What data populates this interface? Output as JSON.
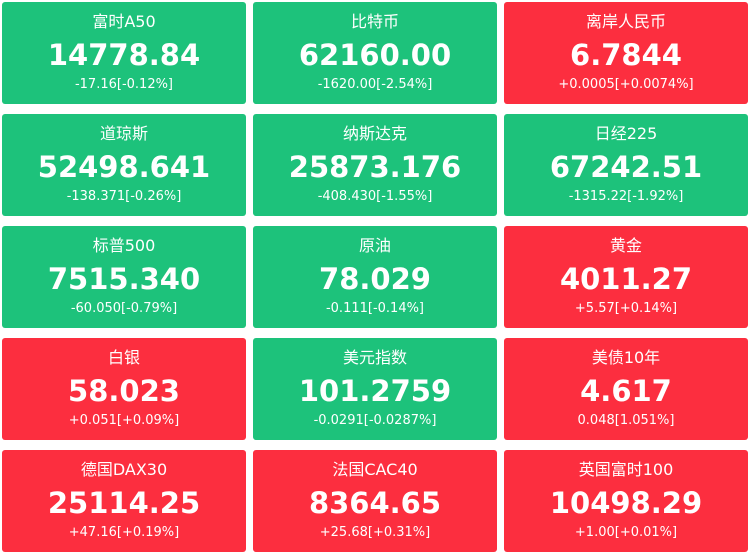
{
  "tiles": [
    {
      "name": "富时A50",
      "price": "14778.84",
      "change": "-17.16[-0.12%]",
      "color": "#1dc27b"
    },
    {
      "name": "比特币",
      "price": "62160.00",
      "change": "-1620.00[-2.54%]",
      "color": "#1dc27b"
    },
    {
      "name": "离岸人民币",
      "price": "6.7844",
      "change": "+0.0005[+0.0074%]",
      "color": "#fc2e3f"
    },
    {
      "name": "道琼斯",
      "price": "52498.641",
      "change": "-138.371[-0.26%]",
      "color": "#1dc27b"
    },
    {
      "name": "纳斯达克",
      "price": "25873.176",
      "change": "-408.430[-1.55%]",
      "color": "#1dc27b"
    },
    {
      "name": "日经225",
      "price": "67242.51",
      "change": "-1315.22[-1.92%]",
      "color": "#1dc27b"
    },
    {
      "name": "标普500",
      "price": "7515.340",
      "change": "-60.050[-0.79%]",
      "color": "#1dc27b"
    },
    {
      "name": "原油",
      "price": "78.029",
      "change": "-0.111[-0.14%]",
      "color": "#1dc27b"
    },
    {
      "name": "黄金",
      "price": "4011.27",
      "change": "+5.57[+0.14%]",
      "color": "#fc2e3f"
    },
    {
      "name": "白银",
      "price": "58.023",
      "change": "+0.051[+0.09%]",
      "color": "#fc2e3f"
    },
    {
      "name": "美元指数",
      "price": "101.2759",
      "change": "-0.0291[-0.0287%]",
      "color": "#1dc27b"
    },
    {
      "name": "美债10年",
      "price": "4.617",
      "change": "0.048[1.051%]",
      "color": "#fc2e3f"
    },
    {
      "name": "德国DAX30",
      "price": "25114.25",
      "change": "+47.16[+0.19%]",
      "color": "#fc2e3f"
    },
    {
      "name": "法国CAC40",
      "price": "8364.65",
      "change": "+25.68[+0.31%]",
      "color": "#fc2e3f"
    },
    {
      "name": "英国富时100",
      "price": "10498.29",
      "change": "+1.00[+0.01%]",
      "color": "#fc2e3f"
    }
  ]
}
